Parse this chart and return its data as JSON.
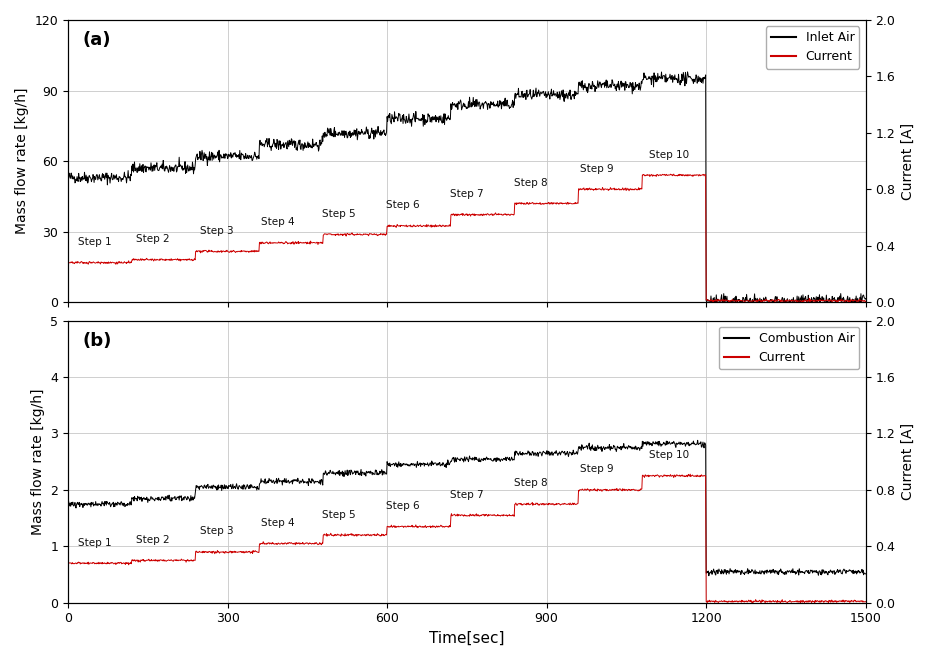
{
  "panel_a": {
    "label": "(a)",
    "ylabel_left": "Mass flow rate [kg/h]",
    "ylabel_right": "Current [A]",
    "ylim_left": [
      0,
      120
    ],
    "ylim_right": [
      0,
      2.0
    ],
    "yticks_left": [
      0,
      30,
      60,
      90,
      120
    ],
    "yticks_right": [
      0.0,
      0.4,
      0.8,
      1.2,
      1.6,
      2.0
    ],
    "legend_labels": [
      "Inlet Air",
      "Current"
    ],
    "steps": [
      {
        "name": "Step 1",
        "t_start": 0,
        "t_end": 120,
        "flow": 53,
        "current": 0.28
      },
      {
        "name": "Step 2",
        "t_start": 120,
        "t_end": 240,
        "flow": 57,
        "current": 0.3
      },
      {
        "name": "Step 3",
        "t_start": 240,
        "t_end": 360,
        "flow": 62,
        "current": 0.36
      },
      {
        "name": "Step 4",
        "t_start": 360,
        "t_end": 480,
        "flow": 67,
        "current": 0.42
      },
      {
        "name": "Step 5",
        "t_start": 480,
        "t_end": 600,
        "flow": 72,
        "current": 0.48
      },
      {
        "name": "Step 6",
        "t_start": 600,
        "t_end": 720,
        "flow": 78,
        "current": 0.54
      },
      {
        "name": "Step 7",
        "t_start": 720,
        "t_end": 840,
        "flow": 84,
        "current": 0.62
      },
      {
        "name": "Step 8",
        "t_start": 840,
        "t_end": 960,
        "flow": 88,
        "current": 0.7
      },
      {
        "name": "Step 9",
        "t_start": 960,
        "t_end": 1080,
        "flow": 92,
        "current": 0.8
      },
      {
        "name": "Step 10",
        "t_start": 1080,
        "t_end": 1200,
        "flow": 95,
        "current": 0.9
      }
    ],
    "shutdown_t": 1200,
    "shutdown_flow": 0.5,
    "shutdown_current": 0.01,
    "t_end": 1500,
    "noise_flow": 1.2,
    "noise_current": 0.004,
    "step_label_t": [
      50,
      160,
      280,
      395,
      510,
      630,
      750,
      870,
      995,
      1130
    ],
    "step_label_cur": [
      0.28,
      0.3,
      0.36,
      0.42,
      0.48,
      0.54,
      0.62,
      0.7,
      0.8,
      0.9
    ]
  },
  "panel_b": {
    "label": "(b)",
    "ylabel_left": "Mass flow rate [kg/h]",
    "ylabel_right": "Current [A]",
    "ylim_left": [
      0,
      5
    ],
    "ylim_right": [
      0,
      2.0
    ],
    "yticks_left": [
      0,
      1,
      2,
      3,
      4,
      5
    ],
    "yticks_right": [
      0.0,
      0.4,
      0.8,
      1.2,
      1.6,
      2.0
    ],
    "legend_labels": [
      "Combustion Air",
      "Current"
    ],
    "steps": [
      {
        "name": "Step 1",
        "t_start": 0,
        "t_end": 120,
        "flow": 1.75,
        "current": 0.28
      },
      {
        "name": "Step 2",
        "t_start": 120,
        "t_end": 240,
        "flow": 1.85,
        "current": 0.3
      },
      {
        "name": "Step 3",
        "t_start": 240,
        "t_end": 360,
        "flow": 2.05,
        "current": 0.36
      },
      {
        "name": "Step 4",
        "t_start": 360,
        "t_end": 480,
        "flow": 2.15,
        "current": 0.42
      },
      {
        "name": "Step 5",
        "t_start": 480,
        "t_end": 600,
        "flow": 2.3,
        "current": 0.48
      },
      {
        "name": "Step 6",
        "t_start": 600,
        "t_end": 720,
        "flow": 2.45,
        "current": 0.54
      },
      {
        "name": "Step 7",
        "t_start": 720,
        "t_end": 840,
        "flow": 2.55,
        "current": 0.62
      },
      {
        "name": "Step 8",
        "t_start": 840,
        "t_end": 960,
        "flow": 2.65,
        "current": 0.7
      },
      {
        "name": "Step 9",
        "t_start": 960,
        "t_end": 1080,
        "flow": 2.75,
        "current": 0.8
      },
      {
        "name": "Step 10",
        "t_start": 1080,
        "t_end": 1200,
        "flow": 2.82,
        "current": 0.9
      }
    ],
    "shutdown_t": 1200,
    "shutdown_flow": 0.55,
    "shutdown_current": 0.01,
    "t_end": 1500,
    "noise_flow": 0.025,
    "noise_current": 0.004,
    "step_label_t": [
      50,
      160,
      280,
      395,
      510,
      630,
      750,
      870,
      995,
      1130
    ],
    "step_label_cur": [
      0.28,
      0.3,
      0.36,
      0.42,
      0.48,
      0.54,
      0.62,
      0.7,
      0.8,
      0.9
    ]
  },
  "xlabel": "Time[sec]",
  "xticks": [
    0,
    300,
    600,
    900,
    1200,
    1500
  ],
  "xlim": [
    0,
    1500
  ],
  "background_color": "#ffffff",
  "grid_color": "#c8c8c8",
  "flow_color": "#000000",
  "current_color": "#cc0000"
}
